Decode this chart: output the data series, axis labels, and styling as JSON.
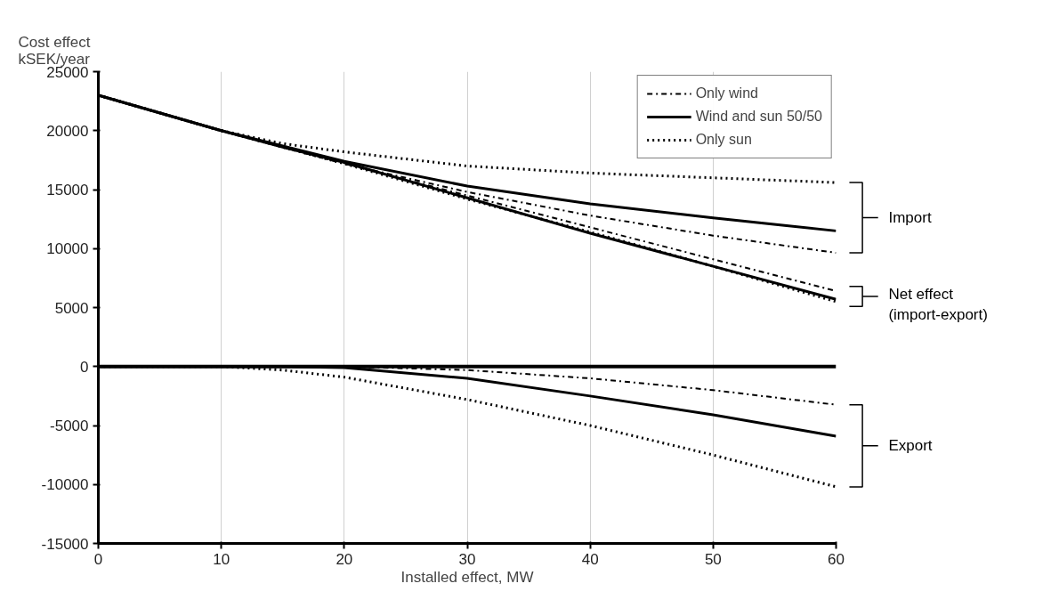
{
  "chart_data": {
    "type": "line",
    "xlabel": "Installed effect, MW",
    "ylabel": "Cost effect\nkSEK/year",
    "x": [
      0,
      10,
      15,
      20,
      30,
      40,
      50,
      60
    ],
    "series": [
      {
        "name": "Only wind",
        "color": "#000000",
        "line_style": "dashdot",
        "values": [
          23000,
          20000,
          18600,
          17200,
          14800,
          12800,
          11100,
          9640
        ]
      },
      {
        "name": "Wind and sun 50/50",
        "color": "#000000",
        "line_style": "solid",
        "values": [
          23000,
          20000,
          18700,
          17400,
          15300,
          13800,
          12600,
          11500
        ]
      },
      {
        "name": "Only sun",
        "color": "#000000",
        "line_style": "dotted",
        "values": [
          23000,
          20000,
          18900,
          18200,
          17000,
          16400,
          16000,
          15600
        ]
      },
      {
        "color": "#000000",
        "line_style": "dashdot",
        "values": [
          23000,
          20000,
          18600,
          17200,
          14500,
          11800,
          9100,
          6400
        ]
      },
      {
        "color": "#000000",
        "line_style": "solid",
        "values": [
          23000,
          20000,
          18600,
          17300,
          14300,
          11300,
          8500,
          5700
        ]
      },
      {
        "color": "#000000",
        "line_style": "dotted",
        "values": [
          23000,
          20000,
          18600,
          17200,
          14200,
          11400,
          8500,
          5500
        ]
      },
      {
        "color": "#000000",
        "line_style": "dashdot",
        "values": [
          0,
          0,
          0,
          0,
          -300,
          -1000,
          -2000,
          -3240
        ]
      },
      {
        "color": "#000000",
        "line_style": "solid",
        "values": [
          0,
          0,
          0,
          -100,
          -1000,
          -2500,
          -4100,
          -5900
        ]
      },
      {
        "color": "#000000",
        "line_style": "dotted",
        "values": [
          0,
          0,
          -300,
          -900,
          -2800,
          -5000,
          -7500,
          -10200
        ]
      }
    ],
    "xlim": [
      0,
      60
    ],
    "xticks": [
      0,
      10,
      20,
      30,
      40,
      50,
      60
    ],
    "ylim": [
      -15000,
      25000
    ],
    "yticks": [
      -15000,
      -10000,
      -5000,
      0,
      5000,
      10000,
      15000,
      20000,
      25000
    ],
    "ref_lines": [
      {
        "axis": "y",
        "value": 0,
        "color": "#000000"
      }
    ],
    "annotations": [
      "Import",
      "Net effect\n(import-export)",
      "Export"
    ],
    "grid": "x",
    "legend": "top right"
  }
}
